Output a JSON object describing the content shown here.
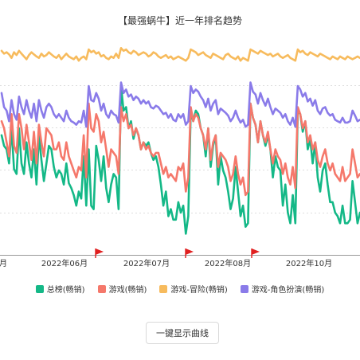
{
  "page": {
    "title": "【最强蜗牛】近一年排名趋势"
  },
  "chart_data": {
    "type": "line",
    "title": "【最强蜗牛】近一年排名趋势",
    "x_ticks": [
      "2022年06月",
      "2022年07月",
      "2022年08月",
      "2022年10月"
    ],
    "x_tick_partial_left": "月",
    "flags": [
      "2022-06",
      "2022-07",
      "2022-08"
    ],
    "colors": {
      "total": "#14b887",
      "game": "#f5786b",
      "adventure": "#f7bb5d",
      "rpg": "#8a7be9",
      "grid": "#dddddd",
      "flag": "#e02020"
    },
    "series": [
      {
        "name": "总榜(畅销)",
        "key": "total",
        "color": "#14b887",
        "values": [
          130,
          145,
          150,
          170,
          120,
          178,
          185,
          120,
          170,
          185,
          140,
          170,
          190,
          150,
          200,
          130,
          165,
          195,
          170,
          145,
          150,
          175,
          190,
          180,
          185,
          200,
          170,
          198,
          205,
          215,
          230,
          210,
          220,
          160,
          230,
          150,
          230,
          235,
          145,
          165,
          195,
          160,
          205,
          225,
          200,
          185,
          190,
          235,
          60,
          95,
          90,
          120,
          110,
          135,
          120,
          130,
          150,
          140,
          145,
          140,
          155,
          165,
          160,
          175,
          200,
          230,
          210,
          245,
          235,
          250,
          250,
          225,
          240,
          230,
          270,
          245,
          95,
          110,
          95,
          100,
          120,
          130,
          160,
          120,
          175,
          145,
          130,
          200,
          160,
          180,
          190,
          210,
          235,
          220,
          175,
          210,
          245,
          230,
          260,
          255,
          85,
          105,
          115,
          140,
          110,
          130,
          145,
          130,
          150,
          190,
          160,
          175,
          180,
          230,
          200,
          240,
          255,
          215,
          255,
          95,
          100,
          125,
          110,
          150,
          135,
          170,
          140,
          190,
          210,
          180,
          170,
          200,
          225,
          225,
          240,
          245,
          255,
          230,
          255,
          255,
          250,
          195,
          225,
          255,
          240
        ]
      },
      {
        "name": "游戏(畅销)",
        "key": "game",
        "color": "#f5786b",
        "values": [
          110,
          120,
          140,
          160,
          100,
          145,
          155,
          100,
          120,
          150,
          115,
          140,
          165,
          125,
          170,
          115,
          140,
          160,
          120,
          125,
          130,
          150,
          150,
          140,
          160,
          165,
          140,
          160,
          170,
          180,
          190,
          175,
          180,
          130,
          190,
          85,
          120,
          125,
          100,
          110,
          140,
          125,
          150,
          175,
          150,
          155,
          160,
          185,
          90,
          110,
          100,
          120,
          115,
          130,
          120,
          130,
          150,
          140,
          150,
          145,
          155,
          160,
          155,
          155,
          170,
          185,
          175,
          190,
          185,
          190,
          195,
          175,
          180,
          170,
          210,
          190,
          90,
          110,
          100,
          105,
          120,
          130,
          150,
          120,
          165,
          140,
          130,
          175,
          155,
          160,
          165,
          175,
          195,
          185,
          160,
          185,
          200,
          190,
          215,
          210,
          85,
          105,
          115,
          140,
          110,
          130,
          140,
          125,
          150,
          170,
          150,
          160,
          165,
          185,
          170,
          190,
          200,
          175,
          205,
          90,
          100,
          120,
          110,
          140,
          130,
          150,
          140,
          165,
          175,
          160,
          150,
          170,
          180,
          170,
          185,
          190,
          195,
          175,
          195,
          190,
          185,
          150,
          170,
          190,
          185
        ]
      },
      {
        "name": "游戏-冒险(畅销)",
        "key": "adventure",
        "color": "#f7bb5d",
        "values": [
          10,
          14,
          12,
          15,
          20,
          12,
          16,
          10,
          14,
          18,
          22,
          16,
          12,
          15,
          18,
          20,
          14,
          18,
          16,
          12,
          15,
          18,
          20,
          16,
          22,
          18,
          14,
          18,
          20,
          22,
          18,
          24,
          20,
          18,
          22,
          8,
          12,
          10,
          14,
          12,
          18,
          16,
          20,
          22,
          18,
          20,
          14,
          20,
          6,
          10,
          8,
          12,
          14,
          10,
          12,
          16,
          14,
          12,
          14,
          18,
          16,
          12,
          14,
          18,
          20,
          18,
          16,
          20,
          18,
          22,
          20,
          18,
          20,
          22,
          24,
          20,
          8,
          10,
          12,
          16,
          14,
          12,
          16,
          18,
          20,
          14,
          16,
          18,
          20,
          22,
          16,
          14,
          18,
          20,
          22,
          18,
          24,
          20,
          22,
          24,
          8,
          10,
          12,
          14,
          10,
          12,
          14,
          16,
          14,
          18,
          16,
          14,
          18,
          20,
          18,
          16,
          20,
          22,
          24,
          8,
          12,
          10,
          14,
          16,
          12,
          14,
          16,
          18,
          14,
          16,
          18,
          20,
          22,
          18,
          20,
          22,
          18,
          20,
          22,
          18,
          20,
          22,
          20,
          18,
          20
        ]
      },
      {
        "name": "游戏-角色扮演(畅销)",
        "key": "rpg",
        "color": "#8a7be9",
        "values": [
          70,
          90,
          95,
          110,
          80,
          100,
          108,
          75,
          90,
          100,
          80,
          95,
          105,
          85,
          110,
          80,
          95,
          105,
          90,
          85,
          90,
          100,
          105,
          100,
          105,
          110,
          95,
          105,
          110,
          112,
          115,
          110,
          112,
          95,
          118,
          60,
          80,
          82,
          70,
          78,
          95,
          85,
          100,
          105,
          95,
          100,
          102,
          112,
          55,
          70,
          65,
          75,
          72,
          80,
          75,
          78,
          85,
          80,
          85,
          82,
          90,
          92,
          88,
          90,
          95,
          100,
          98,
          105,
          100,
          108,
          110,
          100,
          105,
          100,
          115,
          110,
          60,
          70,
          65,
          68,
          75,
          80,
          90,
          78,
          95,
          85,
          80,
          100,
          92,
          95,
          98,
          102,
          110,
          105,
          95,
          105,
          112,
          108,
          118,
          115,
          55,
          68,
          72,
          85,
          70,
          80,
          88,
          78,
          90,
          100,
          92,
          95,
          98,
          105,
          100,
          110,
          115,
          105,
          118,
          60,
          65,
          75,
          70,
          82,
          78,
          88,
          80,
          95,
          100,
          92,
          90,
          98,
          102,
          100,
          108,
          110,
          112,
          105,
          112,
          112,
          110,
          95,
          102,
          110,
          108
        ]
      }
    ],
    "legend_placement": "bottom",
    "grid": true
  },
  "toggle_button": {
    "label": "一键显示曲线"
  }
}
